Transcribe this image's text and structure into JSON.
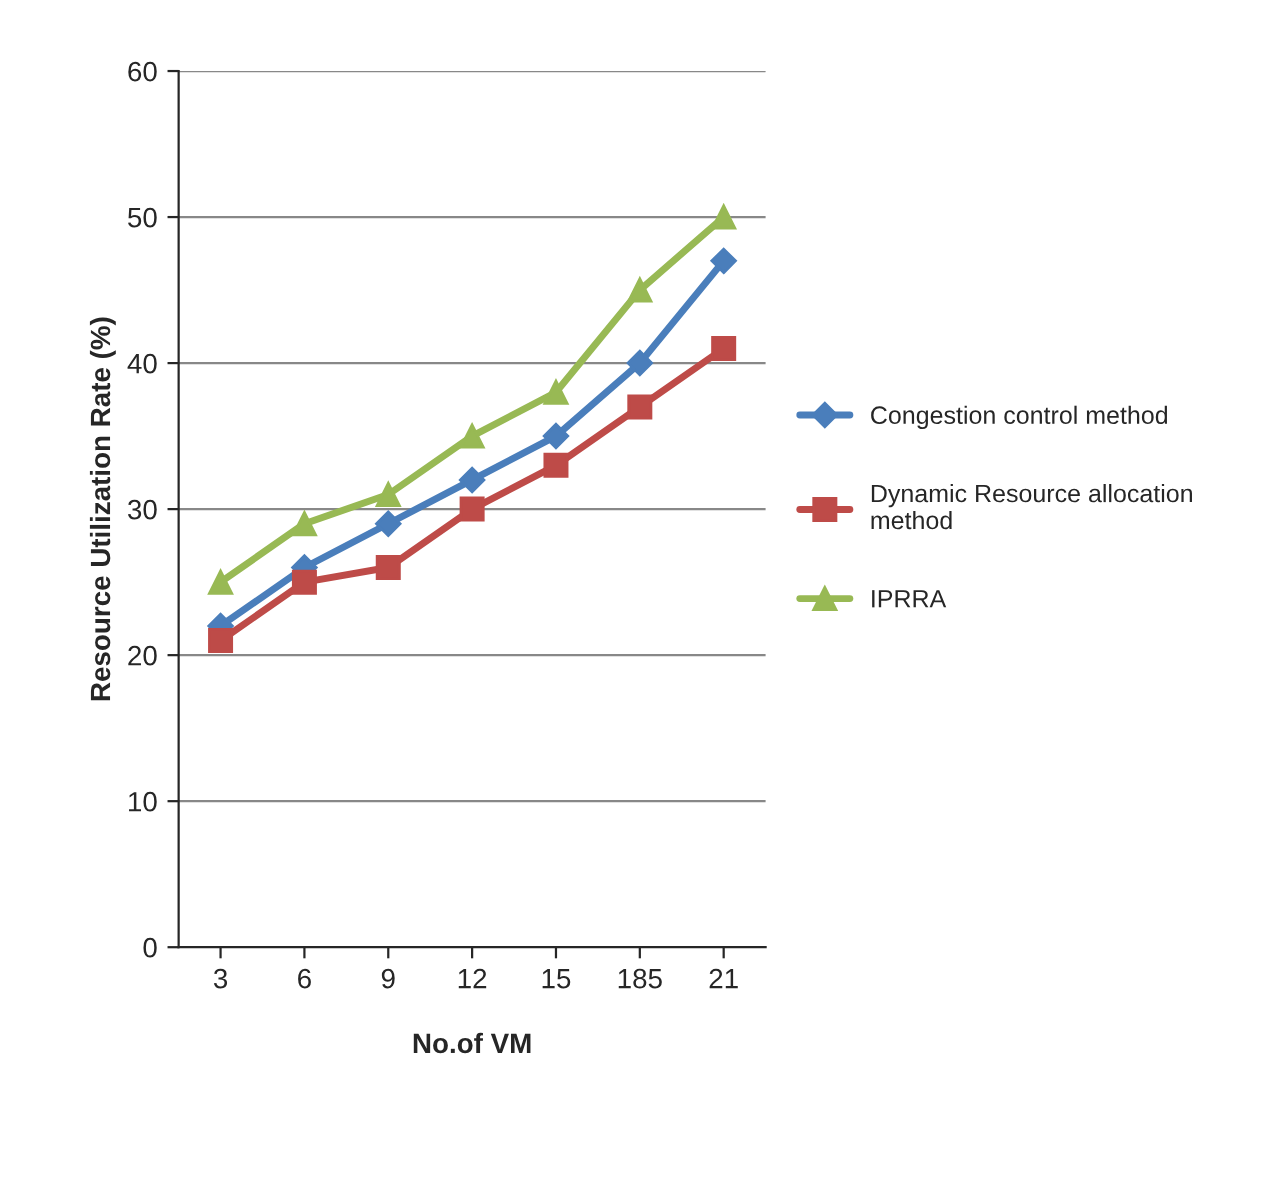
{
  "chart_data": {
    "type": "line",
    "xlabel": "No.of VM",
    "ylabel": "Resource Utilization Rate (%)",
    "categories": [
      "3",
      "6",
      "9",
      "12",
      "15",
      "185",
      "21"
    ],
    "series": [
      {
        "name": "Congestion control method",
        "color": "#4a7ebb",
        "marker": "diamond",
        "values": [
          22,
          26,
          29,
          32,
          35,
          40,
          47
        ]
      },
      {
        "name": "Dynamic Resource allocation method",
        "color": "#be4b48",
        "marker": "square",
        "values": [
          21,
          25,
          26,
          30,
          33,
          37,
          41
        ]
      },
      {
        "name": "IPRRA",
        "color": "#98b954",
        "marker": "triangle",
        "values": [
          25,
          29,
          31,
          35,
          38,
          45,
          50
        ]
      }
    ],
    "ylim": [
      0,
      60
    ],
    "yticks": [
      0,
      10,
      20,
      30,
      40,
      50,
      60
    ],
    "grid": "y",
    "legend": "right",
    "line_style": "solid"
  }
}
